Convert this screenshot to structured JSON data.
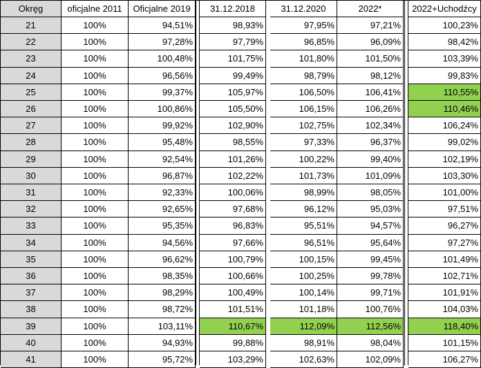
{
  "table": {
    "headers": [
      "Okręg",
      "oficjalne 2011",
      "Oficjalne 2019",
      "31.12.2018",
      "31.12.2020",
      "2022*",
      "2022+Uchodźcy"
    ],
    "rows": [
      [
        "21",
        "100%",
        "94,51%",
        "98,93%",
        "97,95%",
        "97,21%",
        "100,23%"
      ],
      [
        "22",
        "100%",
        "97,28%",
        "97,79%",
        "96,85%",
        "96,09%",
        "98,42%"
      ],
      [
        "23",
        "100%",
        "100,48%",
        "101,75%",
        "101,80%",
        "101,50%",
        "103,39%"
      ],
      [
        "24",
        "100%",
        "96,56%",
        "99,49%",
        "98,79%",
        "98,12%",
        "99,83%"
      ],
      [
        "25",
        "100%",
        "99,37%",
        "105,97%",
        "106,50%",
        "106,41%",
        "110,55%"
      ],
      [
        "26",
        "100%",
        "100,86%",
        "105,50%",
        "106,15%",
        "106,26%",
        "110,46%"
      ],
      [
        "27",
        "100%",
        "99,92%",
        "102,90%",
        "102,75%",
        "102,34%",
        "106,24%"
      ],
      [
        "28",
        "100%",
        "95,48%",
        "98,55%",
        "97,33%",
        "96,37%",
        "99,02%"
      ],
      [
        "29",
        "100%",
        "92,54%",
        "101,26%",
        "100,22%",
        "99,40%",
        "102,19%"
      ],
      [
        "30",
        "100%",
        "96,87%",
        "102,22%",
        "101,73%",
        "101,09%",
        "103,30%"
      ],
      [
        "31",
        "100%",
        "92,33%",
        "100,06%",
        "98,99%",
        "98,05%",
        "101,00%"
      ],
      [
        "32",
        "100%",
        "92,65%",
        "97,68%",
        "96,12%",
        "95,03%",
        "97,51%"
      ],
      [
        "33",
        "100%",
        "95,35%",
        "96,83%",
        "95,51%",
        "94,57%",
        "96,27%"
      ],
      [
        "34",
        "100%",
        "94,56%",
        "97,66%",
        "96,51%",
        "95,64%",
        "97,27%"
      ],
      [
        "35",
        "100%",
        "96,62%",
        "100,79%",
        "100,15%",
        "99,45%",
        "101,49%"
      ],
      [
        "36",
        "100%",
        "98,35%",
        "100,66%",
        "100,25%",
        "99,78%",
        "102,71%"
      ],
      [
        "37",
        "100%",
        "98,29%",
        "100,49%",
        "100,14%",
        "99,71%",
        "101,91%"
      ],
      [
        "38",
        "100%",
        "98,72%",
        "101,51%",
        "101,18%",
        "100,76%",
        "104,03%"
      ],
      [
        "39",
        "100%",
        "103,11%",
        "110,67%",
        "112,09%",
        "112,56%",
        "118,40%"
      ],
      [
        "40",
        "100%",
        "94,93%",
        "99,88%",
        "98,91%",
        "98,04%",
        "101,15%"
      ],
      [
        "41",
        "100%",
        "95,72%",
        "103,29%",
        "102,63%",
        "102,09%",
        "106,27%"
      ]
    ],
    "highlighted": [
      [
        4,
        6
      ],
      [
        5,
        6
      ],
      [
        18,
        3
      ],
      [
        18,
        4
      ],
      [
        18,
        5
      ],
      [
        18,
        6
      ]
    ],
    "colors": {
      "highlight": "#92d050",
      "rowhead": "#d9d9d9",
      "border": "#000000"
    }
  }
}
